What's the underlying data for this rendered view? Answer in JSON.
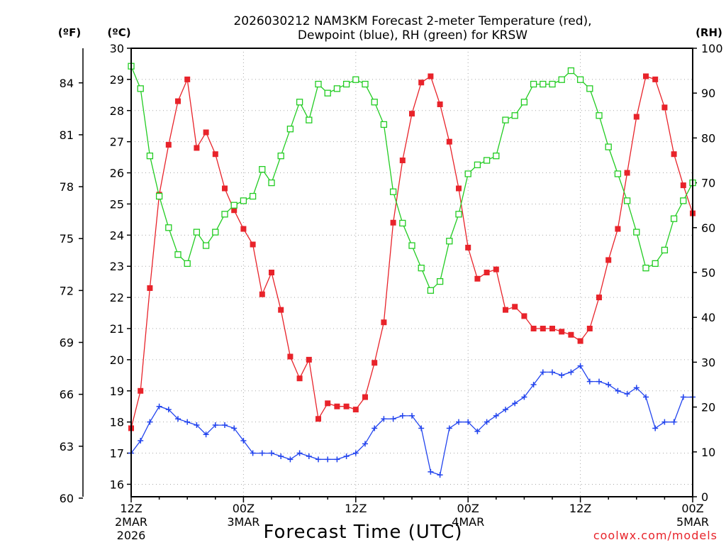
{
  "chart_data": {
    "type": "line",
    "title_line1": "2026030212 NAM3KM Forecast 2-meter Temperature (red),",
    "title_line2": "Dewpoint (blue), RH (green) for KRSW",
    "xlabel": "Forecast Time (UTC)",
    "credit": "coolwx.com/models",
    "units": {
      "fahrenheit": "(ºF)",
      "celsius": "(ºC)",
      "rh": "(RH)"
    },
    "x_range_hours": [
      0,
      60
    ],
    "x_ticks": [
      {
        "hour": 0,
        "line1": "12Z",
        "line2": "2MAR",
        "line3": "2026"
      },
      {
        "hour": 12,
        "line1": "00Z",
        "line2": "3MAR",
        "line3": ""
      },
      {
        "hour": 24,
        "line1": "12Z",
        "line2": "",
        "line3": ""
      },
      {
        "hour": 36,
        "line1": "00Z",
        "line2": "4MAR",
        "line3": ""
      },
      {
        "hour": 48,
        "line1": "12Z",
        "line2": "",
        "line3": ""
      },
      {
        "hour": 60,
        "line1": "00Z",
        "line2": "5MAR",
        "line3": ""
      }
    ],
    "celsius_axis": {
      "min": 15.6,
      "max": 30.0,
      "ticks": [
        "16",
        "17",
        "18",
        "19",
        "20",
        "21",
        "22",
        "23",
        "24",
        "25",
        "26",
        "27",
        "28",
        "29",
        "30"
      ]
    },
    "fahrenheit_axis": {
      "ticks": [
        "60",
        "63",
        "66",
        "69",
        "72",
        "75",
        "78",
        "81",
        "84"
      ]
    },
    "rh_axis": {
      "min": 0,
      "max": 100,
      "ticks": [
        "0",
        "10",
        "20",
        "30",
        "40",
        "50",
        "60",
        "70",
        "80",
        "90",
        "100"
      ]
    },
    "series": [
      {
        "name": "2-meter Temperature",
        "units": "C",
        "color": "#e8232a",
        "marker": "filled-square",
        "x": [
          0,
          1,
          2,
          3,
          4,
          5,
          6,
          7,
          8,
          9,
          10,
          11,
          12,
          13,
          14,
          15,
          16,
          17,
          18,
          19,
          20,
          21,
          22,
          23,
          24,
          25,
          26,
          27,
          28,
          29,
          30,
          31,
          32,
          33,
          34,
          35,
          36,
          37,
          38,
          39,
          40,
          41,
          42,
          43,
          44,
          45,
          46,
          47,
          48,
          49,
          50,
          51,
          52,
          53,
          54,
          55,
          56,
          57,
          58,
          59,
          60
        ],
        "values": [
          17.8,
          19.0,
          22.3,
          25.3,
          26.9,
          28.3,
          29.0,
          26.8,
          27.3,
          26.6,
          25.5,
          24.8,
          24.2,
          23.7,
          22.1,
          22.8,
          21.6,
          20.1,
          19.4,
          20.0,
          18.1,
          18.6,
          18.5,
          18.5,
          18.4,
          18.8,
          19.9,
          21.2,
          24.4,
          26.4,
          27.9,
          28.9,
          29.1,
          28.2,
          27.0,
          25.5,
          23.6,
          22.6,
          22.8,
          22.9,
          21.6,
          21.7,
          21.4,
          21.0,
          21.0,
          21.0,
          20.9,
          20.8,
          20.6,
          21.0,
          22.0,
          23.2,
          24.2,
          26.0,
          27.8,
          29.1,
          29.0,
          28.1,
          26.6,
          25.6,
          24.7
        ]
      },
      {
        "name": "Dewpoint",
        "units": "C",
        "color": "#2244ee",
        "marker": "plus",
        "x": [
          0,
          1,
          2,
          3,
          4,
          5,
          6,
          7,
          8,
          9,
          10,
          11,
          12,
          13,
          14,
          15,
          16,
          17,
          18,
          19,
          20,
          21,
          22,
          23,
          24,
          25,
          26,
          27,
          28,
          29,
          30,
          31,
          32,
          33,
          34,
          35,
          36,
          37,
          38,
          39,
          40,
          41,
          42,
          43,
          44,
          45,
          46,
          47,
          48,
          49,
          50,
          51,
          52,
          53,
          54,
          55,
          56,
          57,
          58,
          59,
          60
        ],
        "values": [
          17.0,
          17.4,
          18.0,
          18.5,
          18.4,
          18.1,
          18.0,
          17.9,
          17.6,
          17.9,
          17.9,
          17.8,
          17.4,
          17.0,
          17.0,
          17.0,
          16.9,
          16.8,
          17.0,
          16.9,
          16.8,
          16.8,
          16.8,
          16.9,
          17.0,
          17.3,
          17.8,
          18.1,
          18.1,
          18.2,
          18.2,
          17.8,
          16.4,
          16.3,
          17.8,
          18.0,
          18.0,
          17.7,
          18.0,
          18.2,
          18.4,
          18.6,
          18.8,
          19.2,
          19.6,
          19.6,
          19.5,
          19.6,
          19.8,
          19.3,
          19.3,
          19.2,
          19.0,
          18.9,
          19.1,
          18.8,
          17.8,
          18.0,
          18.0,
          18.8,
          18.8
        ]
      },
      {
        "name": "RH",
        "units": "%",
        "color": "#22cc22",
        "marker": "open-square",
        "x": [
          0,
          1,
          2,
          3,
          4,
          5,
          6,
          7,
          8,
          9,
          10,
          11,
          12,
          13,
          14,
          15,
          16,
          17,
          18,
          19,
          20,
          21,
          22,
          23,
          24,
          25,
          26,
          27,
          28,
          29,
          30,
          31,
          32,
          33,
          34,
          35,
          36,
          37,
          38,
          39,
          40,
          41,
          42,
          43,
          44,
          45,
          46,
          47,
          48,
          49,
          50,
          51,
          52,
          53,
          54,
          55,
          56,
          57,
          58,
          59,
          60
        ],
        "values": [
          96,
          91,
          76,
          67,
          60,
          54,
          52,
          59,
          56,
          59,
          63,
          65,
          66,
          67,
          73,
          70,
          76,
          82,
          88,
          84,
          92,
          90,
          91,
          92,
          93,
          92,
          88,
          83,
          68,
          61,
          56,
          51,
          46,
          48,
          57,
          63,
          72,
          74,
          75,
          76,
          84,
          85,
          88,
          92,
          92,
          92,
          93,
          95,
          93,
          91,
          85,
          78,
          72,
          66,
          59,
          51,
          52,
          55,
          62,
          66,
          70
        ]
      }
    ]
  }
}
